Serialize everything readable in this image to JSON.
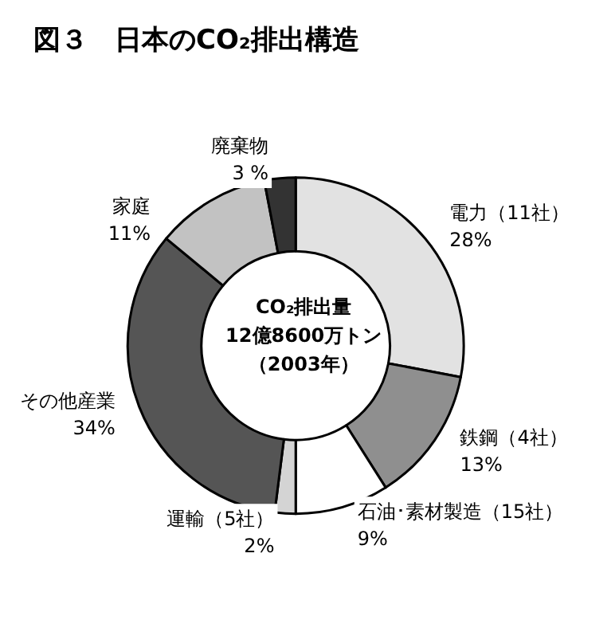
{
  "chart_data": {
    "type": "donut",
    "title": "図３　日本のCO₂排出構造",
    "categories": [
      "電力（11社）",
      "鉄鋼（4社）",
      "石油･素材製造（15社）",
      "運輸（5社）",
      "その他産業",
      "家庭",
      "廃棄物"
    ],
    "values": [
      28,
      13,
      9,
      2,
      34,
      11,
      3
    ],
    "colors": [
      "#e2e2e2",
      "#8f8f8f",
      "#ffffff",
      "#d4d4d4",
      "#555555",
      "#c2c2c2",
      "#333333"
    ],
    "value_labels": [
      "28%",
      "13%",
      "9%",
      "2%",
      "34%",
      "11%",
      "3 %"
    ],
    "annotations": [
      "CO₂排出量",
      "12億8600万トン",
      "（2003年）"
    ]
  }
}
